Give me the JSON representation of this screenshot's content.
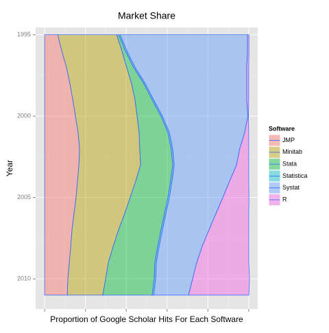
{
  "chart_data": {
    "type": "stacked_area_horizontal",
    "title": "Market Share",
    "x_label": "Proportion of Google Scholar Hits For Each Software",
    "y_label": "Year",
    "legend_title": "Software",
    "legend_position": "right",
    "grid": true,
    "y_reversed": true,
    "outline_color": "#3366ff",
    "fill_opacity": 0.45,
    "x": [
      1995,
      1996,
      1997,
      1998,
      1999,
      2000,
      2001,
      2002,
      2003,
      2004,
      2005,
      2006,
      2007,
      2008,
      2009,
      2010,
      2011
    ],
    "xlim": [
      -0.044,
      1.044
    ],
    "xticks": [
      0,
      0.2,
      0.4,
      0.6,
      0.8,
      1
    ],
    "ylim": [
      1994.55,
      2011.85
    ],
    "yticks": [
      1995,
      2000,
      2005,
      2010
    ],
    "series": [
      {
        "name": "JMP",
        "color": "#f8766d",
        "values": [
          0.064,
          0.084,
          0.107,
          0.124,
          0.138,
          0.151,
          0.164,
          0.171,
          0.168,
          0.161,
          0.154,
          0.144,
          0.134,
          0.128,
          0.121,
          0.114,
          0.111
        ]
      },
      {
        "name": "Minitab",
        "color": "#b79f00",
        "values": [
          0.289,
          0.295,
          0.295,
          0.302,
          0.305,
          0.302,
          0.299,
          0.295,
          0.302,
          0.285,
          0.265,
          0.248,
          0.228,
          0.208,
          0.191,
          0.185,
          0.174
        ]
      },
      {
        "name": "Stata",
        "color": "#00ba38",
        "values": [
          0.01,
          0.017,
          0.034,
          0.06,
          0.084,
          0.117,
          0.141,
          0.154,
          0.158,
          0.171,
          0.185,
          0.195,
          0.208,
          0.218,
          0.228,
          0.238,
          0.242
        ]
      },
      {
        "name": "Statistica",
        "color": "#00bfc4",
        "values": [
          0.007,
          0.007,
          0.007,
          0.007,
          0.007,
          0.007,
          0.007,
          0.007,
          0.007,
          0.007,
          0.007,
          0.007,
          0.007,
          0.007,
          0.007,
          0.007,
          0.007
        ]
      },
      {
        "name": "Systat",
        "color": "#619cff",
        "values": [
          0.624,
          0.591,
          0.547,
          0.497,
          0.456,
          0.419,
          0.369,
          0.329,
          0.305,
          0.282,
          0.262,
          0.245,
          0.228,
          0.211,
          0.198,
          0.181,
          0.171
        ]
      },
      {
        "name": "R",
        "color": "#f564e3",
        "values": [
          0.007,
          0.007,
          0.01,
          0.01,
          0.01,
          0.003,
          0.02,
          0.044,
          0.06,
          0.094,
          0.128,
          0.161,
          0.195,
          0.228,
          0.255,
          0.279,
          0.295
        ]
      }
    ]
  }
}
